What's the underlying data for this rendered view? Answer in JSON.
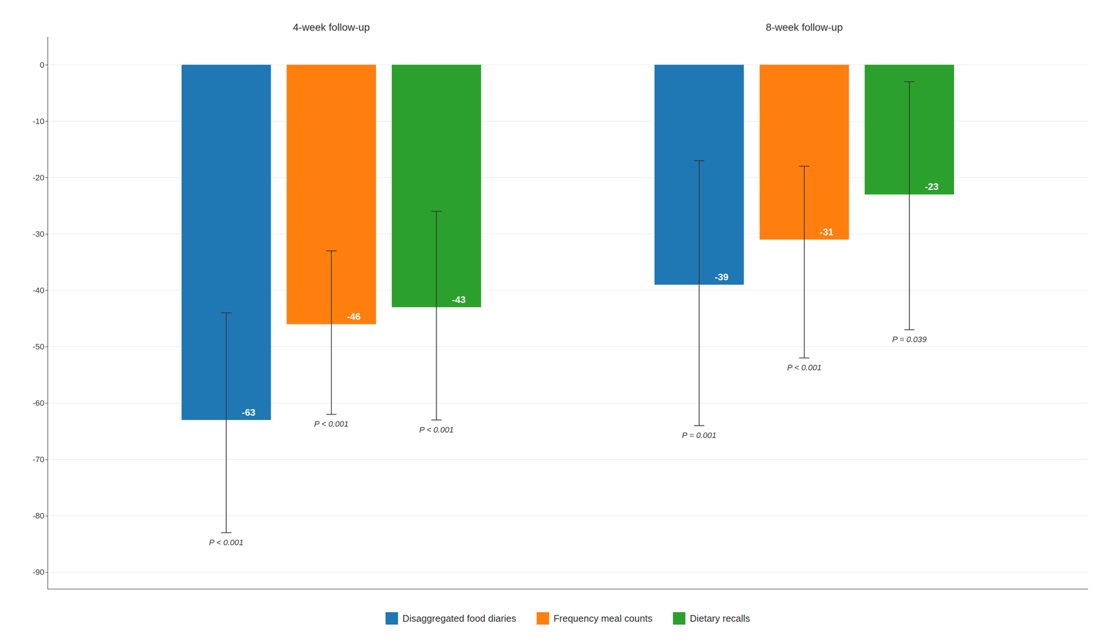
{
  "chart_data": {
    "type": "bar",
    "categories": [
      "4-week follow-up",
      "8-week follow-up"
    ],
    "series": [
      {
        "name": "Disaggregated food diaries",
        "values": [
          -63,
          -39
        ],
        "error_low": [
          -83,
          -64
        ],
        "error_high": [
          -44,
          -17
        ],
        "p_values": [
          "P < 0.001",
          "P = 0.001"
        ]
      },
      {
        "name": "Frequency meal counts",
        "values": [
          -46,
          -31
        ],
        "error_low": [
          -62,
          -52
        ],
        "error_high": [
          -33,
          -18
        ],
        "p_values": [
          "P < 0.001",
          "P < 0.001"
        ]
      },
      {
        "name": "Dietary recalls",
        "values": [
          -43,
          -23
        ],
        "error_low": [
          -63,
          -47
        ],
        "error_high": [
          -26,
          -3
        ],
        "p_values": [
          "P < 0.001",
          "P = 0.039"
        ]
      }
    ],
    "ylim": [
      -93,
      5
    ],
    "yticks": [
      0,
      -10,
      -20,
      -30,
      -40,
      -50,
      -60,
      -70,
      -80,
      -90
    ],
    "grid": true,
    "legend": "bottom",
    "data_labels": true
  }
}
